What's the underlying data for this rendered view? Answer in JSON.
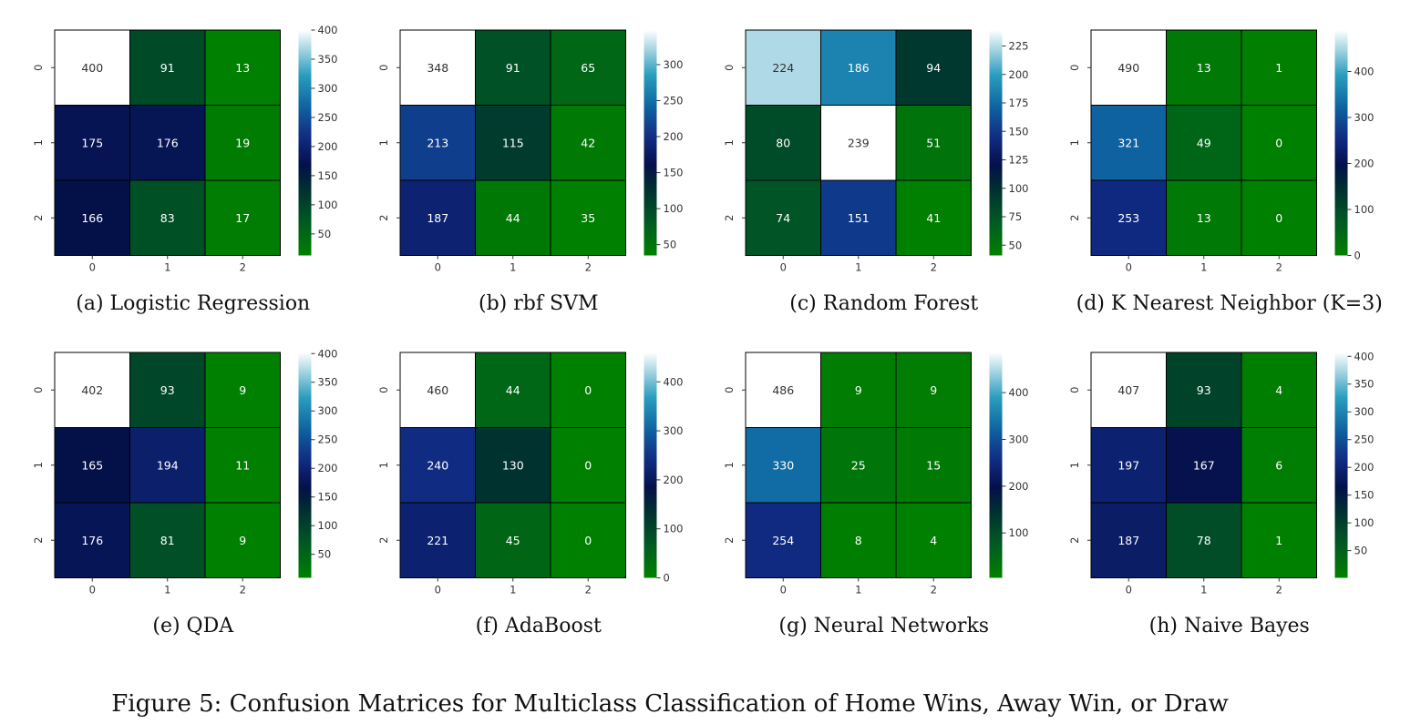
{
  "figure_caption": "Figure 5: Confusion Matrices for Multiclass Classification of Home Wins, Away Win, or Draw",
  "chart_data": [
    {
      "type": "heatmap",
      "caption": "(a) Logistic Regression",
      "x_ticks": [
        "0",
        "1",
        "2"
      ],
      "y_ticks": [
        "0",
        "1",
        "2"
      ],
      "matrix": [
        [
          400,
          91,
          13
        ],
        [
          175,
          176,
          19
        ],
        [
          166,
          83,
          17
        ]
      ],
      "colorbar": {
        "min": 13,
        "max": 400,
        "ticks": [
          50,
          100,
          150,
          200,
          250,
          300,
          350,
          400
        ]
      }
    },
    {
      "type": "heatmap",
      "caption": "(b) rbf SVM",
      "x_ticks": [
        "0",
        "1",
        "2"
      ],
      "y_ticks": [
        "0",
        "1",
        "2"
      ],
      "matrix": [
        [
          348,
          91,
          65
        ],
        [
          213,
          115,
          42
        ],
        [
          187,
          44,
          35
        ]
      ],
      "colorbar": {
        "min": 35,
        "max": 348,
        "ticks": [
          50,
          100,
          150,
          200,
          250,
          300
        ]
      }
    },
    {
      "type": "heatmap",
      "caption": "(c) Random Forest",
      "x_ticks": [
        "0",
        "1",
        "2"
      ],
      "y_ticks": [
        "0",
        "1",
        "2"
      ],
      "matrix": [
        [
          224,
          186,
          94
        ],
        [
          80,
          239,
          51
        ],
        [
          74,
          151,
          41
        ]
      ],
      "colorbar": {
        "min": 41,
        "max": 239,
        "ticks": [
          50,
          75,
          100,
          125,
          150,
          175,
          200,
          225
        ]
      }
    },
    {
      "type": "heatmap",
      "caption": "(d) K Nearest Neighbor (K=3)",
      "x_ticks": [
        "0",
        "1",
        "2"
      ],
      "y_ticks": [
        "0",
        "1",
        "2"
      ],
      "matrix": [
        [
          490,
          13,
          1
        ],
        [
          321,
          49,
          0
        ],
        [
          253,
          13,
          0
        ]
      ],
      "colorbar": {
        "min": 0,
        "max": 490,
        "ticks": [
          0,
          100,
          200,
          300,
          400
        ]
      }
    },
    {
      "type": "heatmap",
      "caption": "(e) QDA",
      "x_ticks": [
        "0",
        "1",
        "2"
      ],
      "y_ticks": [
        "0",
        "1",
        "2"
      ],
      "matrix": [
        [
          402,
          93,
          9
        ],
        [
          165,
          194,
          11
        ],
        [
          176,
          81,
          9
        ]
      ],
      "colorbar": {
        "min": 9,
        "max": 402,
        "ticks": [
          50,
          100,
          150,
          200,
          250,
          300,
          350,
          400
        ]
      }
    },
    {
      "type": "heatmap",
      "caption": "(f) AdaBoost",
      "x_ticks": [
        "0",
        "1",
        "2"
      ],
      "y_ticks": [
        "0",
        "1",
        "2"
      ],
      "matrix": [
        [
          460,
          44,
          0
        ],
        [
          240,
          130,
          0
        ],
        [
          221,
          45,
          0
        ]
      ],
      "colorbar": {
        "min": 0,
        "max": 460,
        "ticks": [
          0,
          100,
          200,
          300,
          400
        ]
      }
    },
    {
      "type": "heatmap",
      "caption": "(g) Neural Networks",
      "x_ticks": [
        "0",
        "1",
        "2"
      ],
      "y_ticks": [
        "0",
        "1",
        "2"
      ],
      "matrix": [
        [
          486,
          9,
          9
        ],
        [
          330,
          25,
          15
        ],
        [
          254,
          8,
          4
        ]
      ],
      "colorbar": {
        "min": 4,
        "max": 486,
        "ticks": [
          100,
          200,
          300,
          400
        ]
      }
    },
    {
      "type": "heatmap",
      "caption": "(h) Naive Bayes",
      "x_ticks": [
        "0",
        "1",
        "2"
      ],
      "y_ticks": [
        "0",
        "1",
        "2"
      ],
      "matrix": [
        [
          407,
          93,
          4
        ],
        [
          197,
          167,
          6
        ],
        [
          187,
          78,
          1
        ]
      ],
      "colorbar": {
        "min": 1,
        "max": 407,
        "ticks": [
          50,
          100,
          150,
          200,
          250,
          300,
          350,
          400
        ]
      }
    }
  ]
}
